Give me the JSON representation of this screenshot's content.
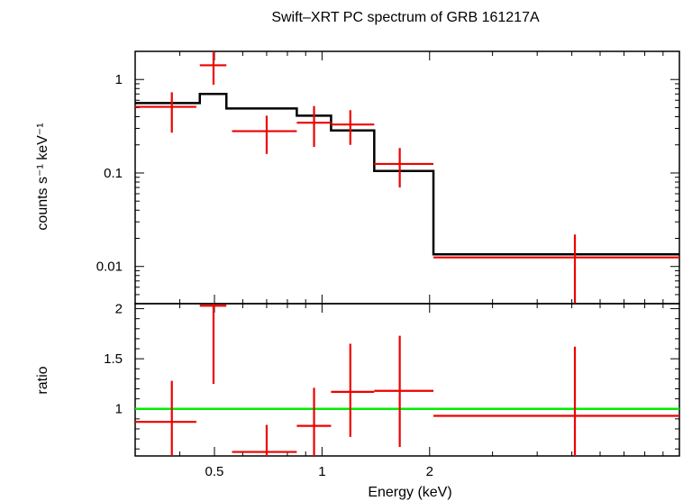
{
  "title": "Swift–XRT PC spectrum of GRB 161217A",
  "colors": {
    "data": "#ee0000",
    "model": "#000000",
    "ratio_line": "#00ee00",
    "axes": "#000000"
  },
  "chart_data": [
    {
      "type": "scatter",
      "panel": "top",
      "ylabel": "counts s⁻¹ keV⁻¹",
      "yscale": "log",
      "xscale": "log",
      "xlim": [
        0.3,
        10
      ],
      "ylim": [
        0.004,
        2
      ],
      "yticks": [
        {
          "v": 0.01,
          "label": "0.01"
        },
        {
          "v": 0.1,
          "label": "0.1"
        },
        {
          "v": 1,
          "label": "1"
        }
      ],
      "data_points": [
        {
          "x": 0.38,
          "xlo": 0.3,
          "xhi": 0.445,
          "y": 0.51,
          "ylo": 0.27,
          "yhi": 0.73
        },
        {
          "x": 0.497,
          "xlo": 0.455,
          "xhi": 0.54,
          "y": 1.42,
          "ylo": 0.88,
          "yhi": 2.0
        },
        {
          "x": 0.7,
          "xlo": 0.56,
          "xhi": 0.85,
          "y": 0.28,
          "ylo": 0.16,
          "yhi": 0.41
        },
        {
          "x": 0.95,
          "xlo": 0.85,
          "xhi": 1.06,
          "y": 0.345,
          "ylo": 0.19,
          "yhi": 0.52
        },
        {
          "x": 1.2,
          "xlo": 1.06,
          "xhi": 1.4,
          "y": 0.33,
          "ylo": 0.2,
          "yhi": 0.47
        },
        {
          "x": 1.65,
          "xlo": 1.4,
          "xhi": 2.05,
          "y": 0.125,
          "ylo": 0.07,
          "yhi": 0.185
        },
        {
          "x": 5.1,
          "xlo": 2.05,
          "xhi": 10,
          "y": 0.0125,
          "ylo": 0.004,
          "yhi": 0.022
        }
      ],
      "model_steps": [
        {
          "xlo": 0.3,
          "xhi": 0.455,
          "y": 0.56
        },
        {
          "xlo": 0.455,
          "xhi": 0.54,
          "y": 0.7
        },
        {
          "xlo": 0.54,
          "xhi": 0.85,
          "y": 0.49
        },
        {
          "xlo": 0.85,
          "xhi": 1.06,
          "y": 0.41
        },
        {
          "xlo": 1.06,
          "xhi": 1.4,
          "y": 0.285
        },
        {
          "xlo": 1.4,
          "xhi": 2.05,
          "y": 0.105
        },
        {
          "xlo": 2.05,
          "xhi": 10,
          "y": 0.0135
        }
      ]
    },
    {
      "type": "scatter",
      "panel": "bottom",
      "ylabel": "ratio",
      "xlabel": "Energy (keV)",
      "xscale": "log",
      "yscale": "linear",
      "xlim": [
        0.3,
        10
      ],
      "ylim": [
        0.53,
        2.05
      ],
      "xticks": [
        {
          "v": 0.5,
          "label": "0.5"
        },
        {
          "v": 1,
          "label": "1"
        },
        {
          "v": 2,
          "label": "2"
        }
      ],
      "yticks": [
        {
          "v": 1,
          "label": "1"
        },
        {
          "v": 1.5,
          "label": "1.5"
        },
        {
          "v": 2,
          "label": "2"
        }
      ],
      "reference_line": 1.0,
      "data_points": [
        {
          "x": 0.38,
          "xlo": 0.3,
          "xhi": 0.445,
          "y": 0.87,
          "ylo": 0.53,
          "yhi": 1.28
        },
        {
          "x": 0.497,
          "xlo": 0.455,
          "xhi": 0.54,
          "y": 2.03,
          "ylo": 1.25,
          "yhi": 2.05
        },
        {
          "x": 0.7,
          "xlo": 0.56,
          "xhi": 0.85,
          "y": 0.57,
          "ylo": 0.53,
          "yhi": 0.84
        },
        {
          "x": 0.95,
          "xlo": 0.85,
          "xhi": 1.06,
          "y": 0.83,
          "ylo": 0.53,
          "yhi": 1.21
        },
        {
          "x": 1.2,
          "xlo": 1.06,
          "xhi": 1.4,
          "y": 1.17,
          "ylo": 0.72,
          "yhi": 1.65
        },
        {
          "x": 1.65,
          "xlo": 1.4,
          "xhi": 2.05,
          "y": 1.18,
          "ylo": 0.62,
          "yhi": 1.73
        },
        {
          "x": 5.1,
          "xlo": 2.05,
          "xhi": 10,
          "y": 0.93,
          "ylo": 0.53,
          "yhi": 1.62
        }
      ]
    }
  ]
}
